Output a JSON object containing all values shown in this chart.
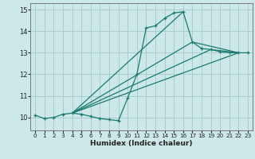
{
  "xlabel": "Humidex (Indice chaleur)",
  "xlim": [
    -0.5,
    23.5
  ],
  "ylim": [
    9.4,
    15.3
  ],
  "yticks": [
    10,
    11,
    12,
    13,
    14,
    15
  ],
  "xticks": [
    0,
    1,
    2,
    3,
    4,
    5,
    6,
    7,
    8,
    9,
    10,
    11,
    12,
    13,
    14,
    15,
    16,
    17,
    18,
    19,
    20,
    21,
    22,
    23
  ],
  "bg_color": "#cce8e8",
  "grid_color": "#aacccc",
  "line_color": "#1a7a6e",
  "main_line": {
    "x": [
      0,
      1,
      2,
      3,
      4,
      5,
      6,
      7,
      8,
      9,
      10,
      11,
      12,
      13,
      14,
      15,
      16,
      17,
      18,
      19,
      20,
      21,
      22,
      23
    ],
    "y": [
      10.1,
      9.95,
      10.0,
      10.15,
      10.2,
      10.15,
      10.05,
      9.95,
      9.9,
      9.85,
      10.9,
      12.0,
      14.15,
      14.25,
      14.6,
      14.85,
      14.9,
      13.5,
      13.2,
      13.15,
      13.05,
      13.0,
      13.0,
      13.0
    ]
  },
  "straight_lines": [
    {
      "x": [
        4,
        16
      ],
      "y": [
        10.2,
        14.9
      ]
    },
    {
      "x": [
        4,
        17,
        22
      ],
      "y": [
        10.2,
        13.5,
        13.0
      ]
    },
    {
      "x": [
        4,
        19,
        22
      ],
      "y": [
        10.2,
        13.15,
        13.0
      ]
    },
    {
      "x": [
        4,
        22
      ],
      "y": [
        10.2,
        13.0
      ]
    }
  ]
}
